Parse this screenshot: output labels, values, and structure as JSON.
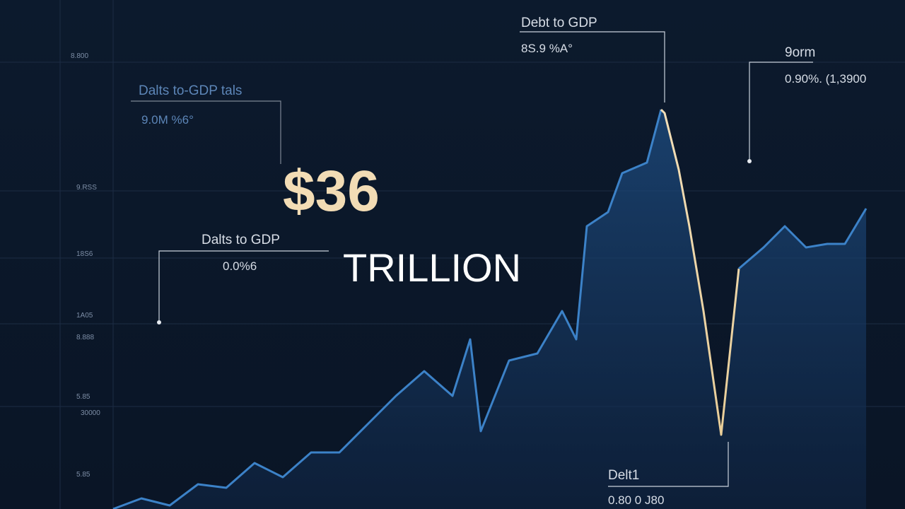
{
  "headline": {
    "amount": "$36",
    "unit": "TRILLION"
  },
  "annotations": [
    {
      "title": "Debt to GDP",
      "value": "8S.9 %A°"
    },
    {
      "title": "Dalts to-GDP tals",
      "value": "9.0M %6°"
    },
    {
      "title": "Dalts to GDP",
      "value": "0.0%6"
    },
    {
      "title": "9orm",
      "value": "0.90%. (1,3900"
    },
    {
      "title": "Delt1",
      "value": "0.80 0 J80"
    }
  ],
  "axis_labels": [
    "8.800",
    "9.RSS",
    "18S6",
    "1A05",
    "8.888",
    "5.85",
    "30000",
    "5.85"
  ]
}
